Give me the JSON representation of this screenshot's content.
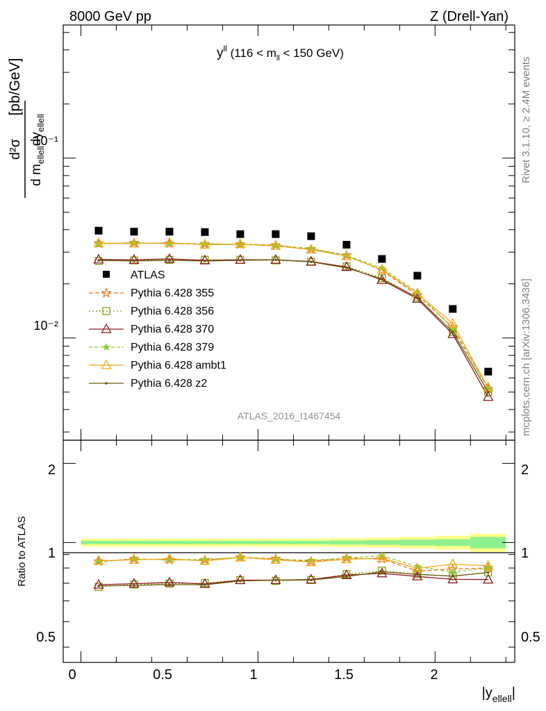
{
  "header": {
    "left": "8000 GeV pp",
    "right": "Z (Drell-Yan)"
  },
  "side": {
    "rivet": "Rivet 3.1.10, ≥ 2.4M events",
    "mcplots": "mcplots.cern.ch [arXiv:1306.3436]"
  },
  "chart_data": {
    "type": "line",
    "title": "y^ll (116 < m_ll < 150 GeV)",
    "title_main": "y",
    "title_sup": "ll",
    "title_open": " (116 < m",
    "title_sub": "ll",
    "title_close": " < 150 GeV)",
    "analysis": "ATLAS_2016_I1467454",
    "ylabel_units": "[pb/GeV]",
    "ylabel_num": "d²σ",
    "ylabel_den_a": "d m",
    "ylabel_den_sub_a": "ellell",
    "ylabel_den_b": "dy",
    "ylabel_den_sub_b": "ellell",
    "xlabel": "|y",
    "xlabel_sub": "ellell",
    "xlabel_end": "|",
    "ratio_ylabel": "Ratio to ATLAS",
    "xlim": [
      -0.1,
      2.45
    ],
    "ylim": [
      0.0027,
      0.55
    ],
    "ratio_ylim": [
      0.35,
      2.45
    ],
    "xticks": [
      "0",
      "0.5",
      "1",
      "1.5",
      "2"
    ],
    "yticks": [
      "10⁻²",
      "10⁻¹"
    ],
    "ratio_yticks": [
      "0.5",
      "1",
      "2"
    ],
    "x": [
      0.1,
      0.3,
      0.5,
      0.7,
      0.9,
      1.1,
      1.3,
      1.5,
      1.7,
      1.9,
      2.1,
      2.3
    ],
    "data": {
      "name": "ATLAS",
      "values": [
        0.0395,
        0.039,
        0.039,
        0.0388,
        0.0378,
        0.0378,
        0.0368,
        0.033,
        0.0275,
        0.0222,
        0.0145,
        0.0065
      ]
    },
    "band": {
      "x_edges": [
        0.0,
        0.2,
        0.4,
        0.6,
        0.8,
        1.0,
        1.2,
        1.4,
        1.6,
        1.8,
        2.0,
        2.2,
        2.4
      ],
      "stat_half": [
        0.015,
        0.015,
        0.015,
        0.015,
        0.015,
        0.015,
        0.015,
        0.018,
        0.02,
        0.025,
        0.03,
        0.05
      ],
      "total_half": [
        0.035,
        0.035,
        0.035,
        0.035,
        0.035,
        0.035,
        0.035,
        0.038,
        0.042,
        0.05,
        0.06,
        0.08
      ]
    },
    "series": [
      {
        "name": "Pythia 6.428 355",
        "color": "#e8701a",
        "marker": "star",
        "dash": "6,3",
        "values": [
          0.0335,
          0.0338,
          0.0335,
          0.0333,
          0.0332,
          0.0328,
          0.0312,
          0.0288,
          0.0238,
          0.0173,
          0.0115,
          0.0052
        ]
      },
      {
        "name": "Pythia 6.428 356",
        "color": "#7ca10a",
        "marker": "square",
        "dash": "2,3",
        "values": [
          0.0268,
          0.027,
          0.0272,
          0.0272,
          0.0272,
          0.027,
          0.0265,
          0.025,
          0.0215,
          0.0168,
          0.0108,
          0.005
        ]
      },
      {
        "name": "Pythia 6.428 370",
        "color": "#8b1a1a",
        "marker": "triangle",
        "dash": "",
        "values": [
          0.0273,
          0.0272,
          0.0275,
          0.027,
          0.0272,
          0.0272,
          0.0266,
          0.0248,
          0.021,
          0.0165,
          0.0105,
          0.0047
        ]
      },
      {
        "name": "Pythia 6.428 379",
        "color": "#8ccc3a",
        "marker": "smallstar",
        "dash": "5,3",
        "values": [
          0.0333,
          0.0338,
          0.0335,
          0.0335,
          0.0332,
          0.0326,
          0.0315,
          0.0288,
          0.0245,
          0.018,
          0.0112,
          0.0052
        ]
      },
      {
        "name": "Pythia 6.428 ambt1",
        "color": "#f0a818",
        "marker": "triangle",
        "dash": "",
        "values": [
          0.0337,
          0.0335,
          0.0338,
          0.033,
          0.0332,
          0.0325,
          0.031,
          0.0285,
          0.024,
          0.0177,
          0.012,
          0.0053
        ]
      },
      {
        "name": "Pythia 6.428 z2",
        "color": "#6b5a10",
        "marker": "dot",
        "dash": "",
        "values": [
          0.027,
          0.0268,
          0.027,
          0.0268,
          0.027,
          0.0272,
          0.0265,
          0.0245,
          0.0213,
          0.0168,
          0.0108,
          0.005
        ]
      }
    ]
  }
}
